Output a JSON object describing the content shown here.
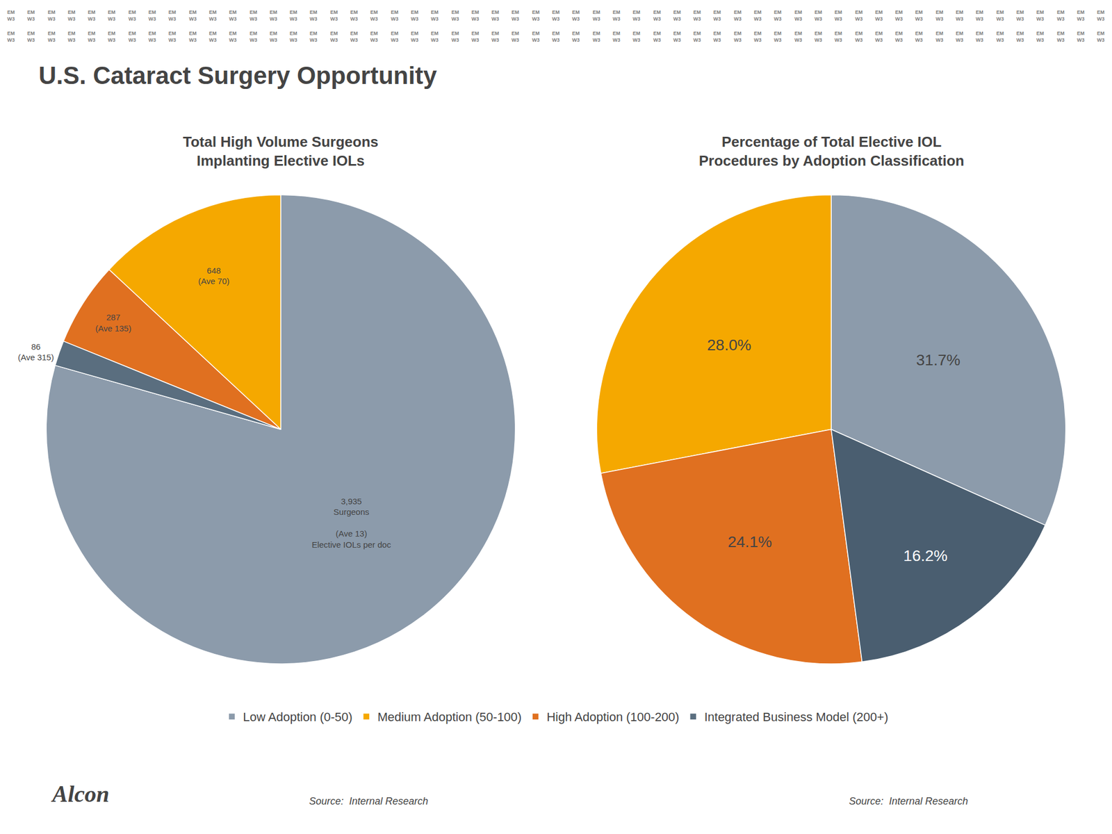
{
  "title": "U.S. Cataract Surgery Opportunity",
  "background_text": "EM\nW3",
  "annotations": [
    "Alcon"
  ],
  "legend": "bottom",
  "chart_data": [
    {
      "type": "pie",
      "title": "Total High Volume Surgeons\nImplanting Elective IOLs",
      "categories": [
        "Low Adoption (0-50)",
        "Medium Adoption (50-100)",
        "High Adoption (100-200)",
        "Integrated Business Model (200+)"
      ],
      "values": [
        3935,
        648,
        287,
        86
      ],
      "value_labels": [
        "3,935\nSurgeons\n\n(Ave 13)\nElective IOLs per doc",
        "648\n(Ave 70)",
        "287\n(Ave 135)",
        "86\n(Ave 315)"
      ],
      "colors": [
        "#8c9bab",
        "#f5a800",
        "#e07020",
        "#5a6e7f"
      ],
      "data_labels": true,
      "annotations": [
        "Source:  Internal Research"
      ]
    },
    {
      "type": "pie",
      "title": "Percentage of Total Elective IOL\nProcedures by Adoption Classification",
      "categories": [
        "Low Adoption (0-50)",
        "Medium Adoption (50-100)",
        "High Adoption (100-200)",
        "Integrated Business Model (200+)"
      ],
      "values": [
        31.7,
        28.0,
        24.1,
        16.2
      ],
      "value_labels": [
        "31.7%",
        "28.0%",
        "24.1%",
        "16.2%"
      ],
      "colors": [
        "#8c9bab",
        "#f5a800",
        "#e07020",
        "#4a5e70"
      ],
      "data_labels": true,
      "annotations": [
        "Source:  Internal Research"
      ]
    }
  ]
}
